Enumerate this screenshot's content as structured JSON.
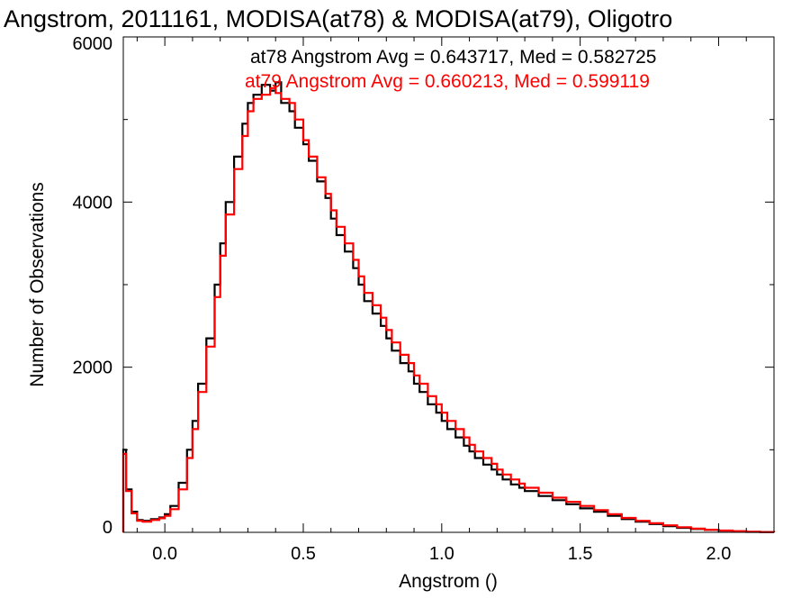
{
  "chart_data": {
    "type": "line",
    "step": true,
    "title": "Angstrom, 2011161, MODISA(at78) & MODISA(at79), Oligotro",
    "xlabel": "Angstrom ()",
    "ylabel": "Number of Observations",
    "xlim": [
      -0.15,
      2.2
    ],
    "ylim": [
      0,
      6000
    ],
    "x_ticks": [
      0.0,
      0.5,
      1.0,
      1.5,
      2.0
    ],
    "x_tick_labels": [
      "0.0",
      "0.5",
      "1.0",
      "1.5",
      "2.0"
    ],
    "y_ticks": [
      0,
      2000,
      4000,
      6000
    ],
    "y_tick_labels": [
      "0",
      "2000",
      "4000",
      "6000"
    ],
    "grid": false,
    "annotations": [
      {
        "text": "at78 Angstrom Avg = 0.643717, Med = 0.582725",
        "color": "#000000"
      },
      {
        "text": "at79 Angstrom Avg = 0.660213, Med = 0.599119",
        "color": "#ff0000"
      }
    ],
    "series": [
      {
        "color": "#000000",
        "x": [
          -0.15,
          -0.14,
          -0.12,
          -0.1,
          -0.08,
          -0.05,
          -0.02,
          0.0,
          0.02,
          0.05,
          0.08,
          0.1,
          0.12,
          0.15,
          0.18,
          0.2,
          0.22,
          0.25,
          0.28,
          0.3,
          0.32,
          0.35,
          0.38,
          0.4,
          0.42,
          0.45,
          0.47,
          0.5,
          0.52,
          0.55,
          0.58,
          0.6,
          0.62,
          0.65,
          0.68,
          0.7,
          0.72,
          0.75,
          0.78,
          0.8,
          0.82,
          0.85,
          0.88,
          0.9,
          0.92,
          0.95,
          0.98,
          1.0,
          1.02,
          1.05,
          1.08,
          1.1,
          1.12,
          1.15,
          1.18,
          1.2,
          1.22,
          1.25,
          1.28,
          1.3,
          1.35,
          1.4,
          1.45,
          1.5,
          1.55,
          1.6,
          1.65,
          1.7,
          1.75,
          1.8,
          1.85,
          1.9,
          1.95,
          2.0,
          2.05,
          2.1,
          2.15,
          2.2
        ],
        "values": [
          1000,
          520,
          250,
          150,
          140,
          160,
          180,
          220,
          320,
          600,
          1000,
          1350,
          1800,
          2350,
          3000,
          3500,
          4000,
          4550,
          4950,
          5200,
          5300,
          5420,
          5350,
          5450,
          5200,
          5100,
          4900,
          4700,
          4500,
          4250,
          4050,
          3800,
          3600,
          3400,
          3200,
          3000,
          2800,
          2650,
          2500,
          2350,
          2200,
          2050,
          1950,
          1800,
          1700,
          1550,
          1450,
          1350,
          1250,
          1150,
          1050,
          980,
          900,
          820,
          760,
          700,
          640,
          580,
          540,
          500,
          440,
          390,
          340,
          290,
          250,
          200,
          160,
          130,
          100,
          75,
          55,
          40,
          30,
          20,
          12,
          6,
          3,
          0
        ]
      },
      {
        "color": "#ff0000",
        "x": [
          -0.15,
          -0.14,
          -0.12,
          -0.1,
          -0.08,
          -0.05,
          -0.02,
          0.0,
          0.02,
          0.05,
          0.08,
          0.1,
          0.12,
          0.15,
          0.18,
          0.2,
          0.22,
          0.25,
          0.28,
          0.3,
          0.32,
          0.35,
          0.38,
          0.4,
          0.42,
          0.45,
          0.47,
          0.5,
          0.52,
          0.55,
          0.58,
          0.6,
          0.62,
          0.65,
          0.68,
          0.7,
          0.72,
          0.75,
          0.78,
          0.8,
          0.82,
          0.85,
          0.88,
          0.9,
          0.92,
          0.95,
          0.98,
          1.0,
          1.02,
          1.05,
          1.08,
          1.1,
          1.12,
          1.15,
          1.18,
          1.2,
          1.22,
          1.25,
          1.28,
          1.3,
          1.35,
          1.4,
          1.45,
          1.5,
          1.55,
          1.6,
          1.65,
          1.7,
          1.75,
          1.8,
          1.85,
          1.9,
          1.95,
          2.0,
          2.05,
          2.1,
          2.15,
          2.2
        ],
        "values": [
          950,
          500,
          230,
          140,
          130,
          150,
          170,
          200,
          280,
          520,
          900,
          1250,
          1700,
          2250,
          2850,
          3350,
          3850,
          4400,
          4800,
          5100,
          5250,
          5300,
          5380,
          5320,
          5250,
          5200,
          5000,
          4750,
          4550,
          4300,
          4100,
          3900,
          3700,
          3500,
          3300,
          3100,
          2900,
          2750,
          2600,
          2450,
          2300,
          2150,
          2050,
          1900,
          1800,
          1650,
          1550,
          1450,
          1350,
          1250,
          1150,
          1060,
          980,
          900,
          830,
          760,
          700,
          640,
          590,
          540,
          480,
          420,
          370,
          320,
          270,
          220,
          175,
          140,
          110,
          85,
          62,
          45,
          32,
          22,
          14,
          7,
          3,
          0
        ]
      }
    ]
  }
}
